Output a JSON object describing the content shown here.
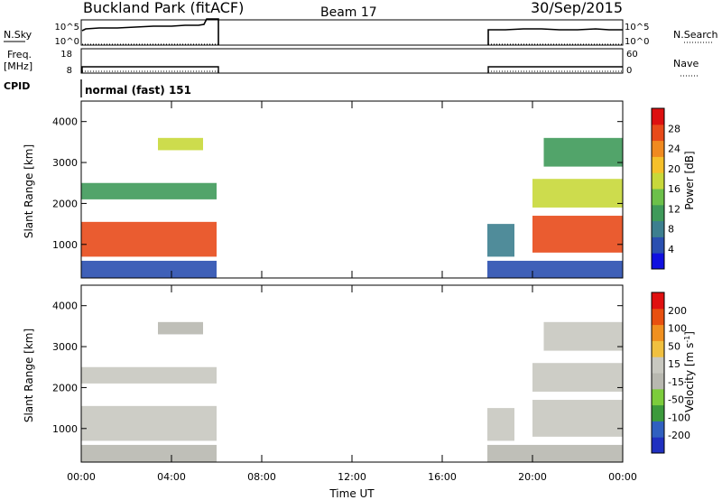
{
  "header": {
    "station": "Buckland Park (fitACF)",
    "beam": "Beam 17",
    "date": "30/Sep/2015"
  },
  "status_panels": {
    "nsky_label": "N.Sky",
    "nsky_ticks": [
      "10^5",
      "10^0"
    ],
    "nsearch_label": "N.Search",
    "nsearch_ticks": [
      "10^5",
      "10^0"
    ],
    "freq_label_1": "Freq.",
    "freq_label_2": "[MHz]",
    "freq_ticks": [
      "18",
      "8"
    ],
    "nave_label": "Nave",
    "nave_ticks": [
      "60",
      "0"
    ],
    "cpid_label": "CPID",
    "cpid_text": "normal (fast) 151"
  },
  "colors": {
    "power_scale": [
      "#1010e0",
      "#2a4fb0",
      "#3d7f8f",
      "#3f9a5a",
      "#6cc04a",
      "#c8d83a",
      "#f5c02a",
      "#f08a20",
      "#e84a1a",
      "#dd1010"
    ],
    "velocity_scale": [
      "#2030c0",
      "#3060c0",
      "#3c9a3c",
      "#7ccc3c",
      "#b8b8b0",
      "#c8c8c0",
      "#f0c040",
      "#f09020",
      "#e85010",
      "#e01010"
    ]
  },
  "chart_data": [
    {
      "type": "heatmap",
      "title": "",
      "xlabel": "",
      "ylabel": "Slant Range [km]",
      "x_ticks": [
        "00:00",
        "04:00",
        "08:00",
        "12:00",
        "16:00",
        "20:00",
        "00:00"
      ],
      "y_ticks": [
        "4000",
        "3000",
        "2000",
        "1000"
      ],
      "ylim": [
        180,
        4500
      ],
      "colorbar_label": "Power [dB]",
      "colorbar_ticks": [
        "28",
        "24",
        "20",
        "16",
        "12",
        "8",
        "4"
      ],
      "colorbar_range": [
        0,
        32
      ],
      "regions": [
        {
          "t_start": 0.0,
          "t_end": 6.0,
          "range_low": 700,
          "range_high": 1550,
          "value": 26
        },
        {
          "t_start": 0.0,
          "t_end": 6.0,
          "range_low": 2100,
          "range_high": 2500,
          "value": 12
        },
        {
          "t_start": 3.4,
          "t_end": 5.4,
          "range_low": 3300,
          "range_high": 3600,
          "value": 16
        },
        {
          "t_start": 0.0,
          "t_end": 6.0,
          "range_low": 180,
          "range_high": 600,
          "value": 6
        },
        {
          "t_start": 18.0,
          "t_end": 24.0,
          "range_low": 180,
          "range_high": 600,
          "value": 6
        },
        {
          "t_start": 18.0,
          "t_end": 19.2,
          "range_low": 700,
          "range_high": 1500,
          "value": 8
        },
        {
          "t_start": 20.0,
          "t_end": 24.0,
          "range_low": 800,
          "range_high": 1700,
          "value": 27
        },
        {
          "t_start": 20.0,
          "t_end": 24.0,
          "range_low": 1900,
          "range_high": 2600,
          "value": 16
        },
        {
          "t_start": 20.5,
          "t_end": 24.0,
          "range_low": 2900,
          "range_high": 3600,
          "value": 10
        }
      ]
    },
    {
      "type": "heatmap",
      "title": "",
      "xlabel": "Time UT",
      "ylabel": "Slant Range [km]",
      "x_ticks": [
        "00:00",
        "04:00",
        "08:00",
        "12:00",
        "16:00",
        "20:00",
        "00:00"
      ],
      "y_ticks": [
        "4000",
        "3000",
        "2000",
        "1000"
      ],
      "ylim": [
        180,
        4500
      ],
      "colorbar_label": "Velocity [m s^-1]",
      "colorbar_ticks": [
        "200",
        "100",
        "50",
        "15",
        "-15",
        "-50",
        "-100",
        "-200"
      ],
      "colorbar_range": [
        -250,
        250
      ],
      "regions": [
        {
          "t_start": 0.0,
          "t_end": 6.0,
          "range_low": 700,
          "range_high": 1550,
          "value": 0
        },
        {
          "t_start": 0.0,
          "t_end": 6.0,
          "range_low": 2100,
          "range_high": 2500,
          "value": 0
        },
        {
          "t_start": 3.4,
          "t_end": 5.4,
          "range_low": 3300,
          "range_high": 3600,
          "value": -40
        },
        {
          "t_start": 0.0,
          "t_end": 6.0,
          "range_low": 180,
          "range_high": 600,
          "value": -40
        },
        {
          "t_start": 18.0,
          "t_end": 24.0,
          "range_low": 180,
          "range_high": 600,
          "value": -40
        },
        {
          "t_start": 18.0,
          "t_end": 19.2,
          "range_low": 700,
          "range_high": 1500,
          "value": 0
        },
        {
          "t_start": 20.0,
          "t_end": 24.0,
          "range_low": 800,
          "range_high": 1700,
          "value": 0
        },
        {
          "t_start": 20.0,
          "t_end": 24.0,
          "range_low": 1900,
          "range_high": 2600,
          "value": 30
        },
        {
          "t_start": 20.5,
          "t_end": 24.0,
          "range_low": 2900,
          "range_high": 3600,
          "value": 30
        }
      ]
    }
  ]
}
